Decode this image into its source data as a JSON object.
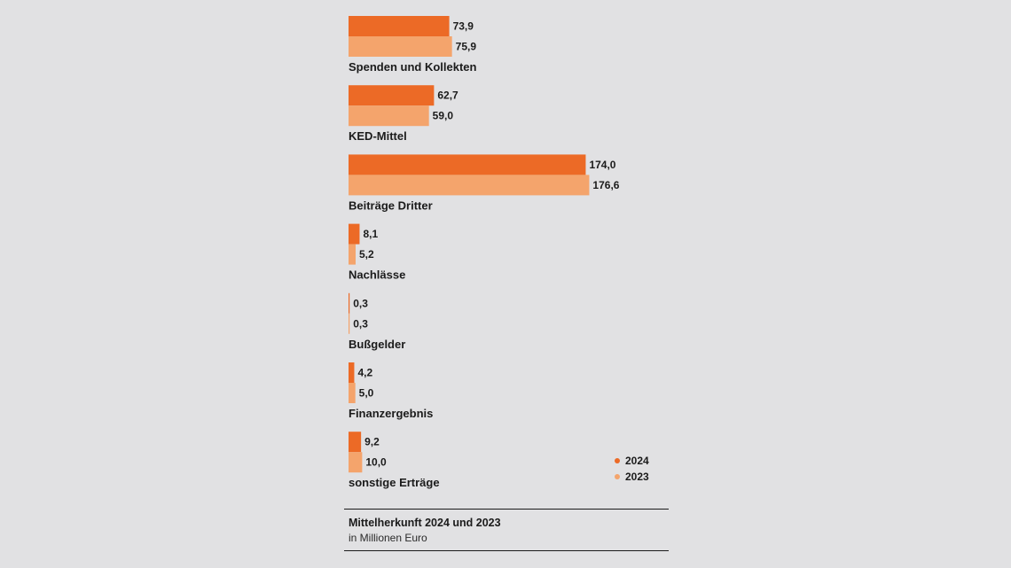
{
  "chart_data": {
    "type": "bar",
    "orientation": "horizontal",
    "title": "Mittelherkunft 2024 und 2023",
    "subtitle": "in Millionen Euro",
    "categories": [
      "Spenden und Kollekten",
      "KED-Mittel",
      "Beiträge Dritter",
      "Nachlässe",
      "Bußgelder",
      "Finanzergebnis",
      "sonstige Erträge"
    ],
    "series": [
      {
        "name": "2024",
        "color": "#ec6a26",
        "values": [
          73.9,
          62.7,
          174.0,
          8.1,
          0.3,
          4.2,
          9.2
        ],
        "value_labels": [
          "73,9",
          "62,7",
          "174,0",
          "8,1",
          "0,3",
          "4,2",
          "9,2"
        ]
      },
      {
        "name": "2023",
        "color": "#f4a46c",
        "values": [
          75.9,
          59.0,
          176.6,
          5.2,
          0.3,
          5.0,
          10.0
        ],
        "value_labels": [
          "75,9",
          "59,0",
          "176,6",
          "5,2",
          "0,3",
          "5,0",
          "10,0"
        ]
      }
    ],
    "legend_position": "bottom-right",
    "grid": false
  }
}
